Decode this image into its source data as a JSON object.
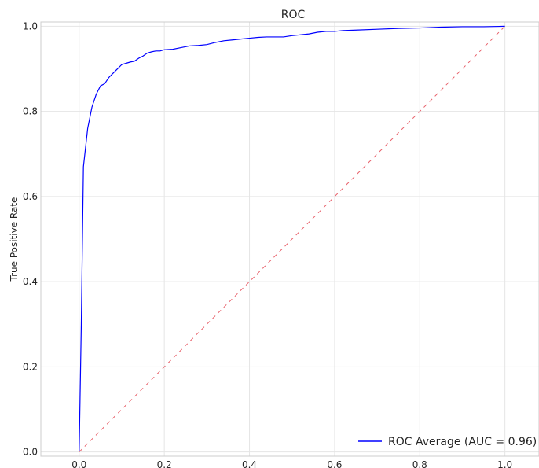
{
  "chart_data": {
    "type": "line",
    "title": "ROC",
    "xlabel": "",
    "ylabel": "True Positive Rate",
    "xlim": [
      -0.09,
      1.08
    ],
    "ylim": [
      -0.01,
      1.01
    ],
    "xticks": [
      0.0,
      0.2,
      0.4,
      0.6,
      0.8,
      1.0
    ],
    "yticks": [
      0.0,
      0.2,
      0.4,
      0.6,
      0.8,
      1.0
    ],
    "xtick_labels": [
      "0.0",
      "0.2",
      "0.4",
      "0.6",
      "0.8",
      "1.0"
    ],
    "ytick_labels": [
      "0.0",
      "0.2",
      "0.4",
      "0.6",
      "0.8",
      "1.0"
    ],
    "grid": true,
    "legend_position": "bottom-right",
    "series": [
      {
        "name": "ROC Average (AUC = 0.96)",
        "color": "#0000ff",
        "style": "solid",
        "in_legend": true,
        "x": [
          0.0,
          0.005,
          0.01,
          0.02,
          0.03,
          0.04,
          0.05,
          0.06,
          0.07,
          0.08,
          0.09,
          0.1,
          0.11,
          0.12,
          0.13,
          0.14,
          0.15,
          0.16,
          0.17,
          0.18,
          0.19,
          0.2,
          0.22,
          0.24,
          0.26,
          0.28,
          0.3,
          0.32,
          0.34,
          0.36,
          0.38,
          0.4,
          0.42,
          0.44,
          0.46,
          0.48,
          0.5,
          0.52,
          0.54,
          0.56,
          0.58,
          0.6,
          0.62,
          0.65,
          0.7,
          0.75,
          0.8,
          0.85,
          0.9,
          0.95,
          1.0
        ],
        "y": [
          0.0,
          0.3,
          0.67,
          0.76,
          0.81,
          0.84,
          0.86,
          0.865,
          0.88,
          0.89,
          0.9,
          0.91,
          0.913,
          0.916,
          0.918,
          0.925,
          0.93,
          0.937,
          0.94,
          0.942,
          0.942,
          0.945,
          0.946,
          0.95,
          0.954,
          0.955,
          0.957,
          0.962,
          0.966,
          0.968,
          0.97,
          0.972,
          0.974,
          0.975,
          0.975,
          0.975,
          0.978,
          0.98,
          0.982,
          0.986,
          0.988,
          0.988,
          0.99,
          0.991,
          0.993,
          0.995,
          0.996,
          0.998,
          0.999,
          0.999,
          1.0
        ]
      },
      {
        "name": "",
        "color": "#e8616b",
        "style": "dashed",
        "in_legend": false,
        "x": [
          0.0,
          1.0
        ],
        "y": [
          0.0,
          1.0
        ]
      }
    ]
  }
}
